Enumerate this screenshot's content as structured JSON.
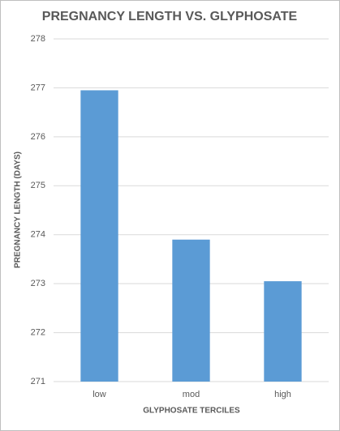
{
  "chart_data": {
    "type": "bar",
    "title": "PREGNANCY LENGTH VS. GLYPHOSATE",
    "y_label": "PREGNANCY LENGTH  (DAYS)",
    "x_label": "GLYPHOSATE TERCILES",
    "categories": [
      "low",
      "mod",
      "high"
    ],
    "values": [
      276.95,
      273.9,
      273.05
    ],
    "color": "#5b9bd5",
    "ylim": [
      271,
      278
    ],
    "yticks": [
      271,
      272,
      273,
      274,
      275,
      276,
      277,
      278
    ],
    "grid": true
  }
}
